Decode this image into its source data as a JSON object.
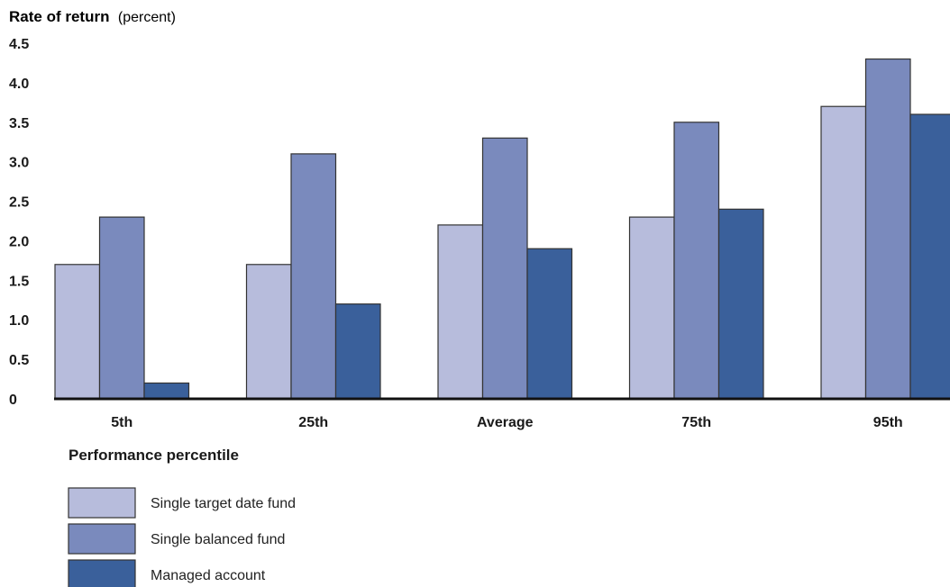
{
  "chart_data": {
    "type": "bar",
    "ylabel": "Rate of return",
    "ylabel_unit": "(percent)",
    "xlabel": "Performance percentile",
    "categories": [
      "5th",
      "25th",
      "Average",
      "75th",
      "95th"
    ],
    "yticks": [
      "0",
      "0.5",
      "1.0",
      "1.5",
      "2.0",
      "2.5",
      "3.0",
      "3.5",
      "4.0",
      "4.5"
    ],
    "ylim": [
      0,
      4.5
    ],
    "grid": false,
    "legend_position": "bottom-left",
    "series": [
      {
        "name": "Single target date fund",
        "color": "#b7bcdc",
        "values": [
          1.7,
          1.7,
          2.2,
          2.3,
          3.7
        ]
      },
      {
        "name": "Single balanced fund",
        "color": "#7a8abd",
        "values": [
          2.3,
          3.1,
          3.3,
          3.5,
          4.3
        ]
      },
      {
        "name": "Managed account",
        "color": "#3a609b",
        "values": [
          0.2,
          1.2,
          1.9,
          2.4,
          3.6
        ]
      }
    ]
  }
}
